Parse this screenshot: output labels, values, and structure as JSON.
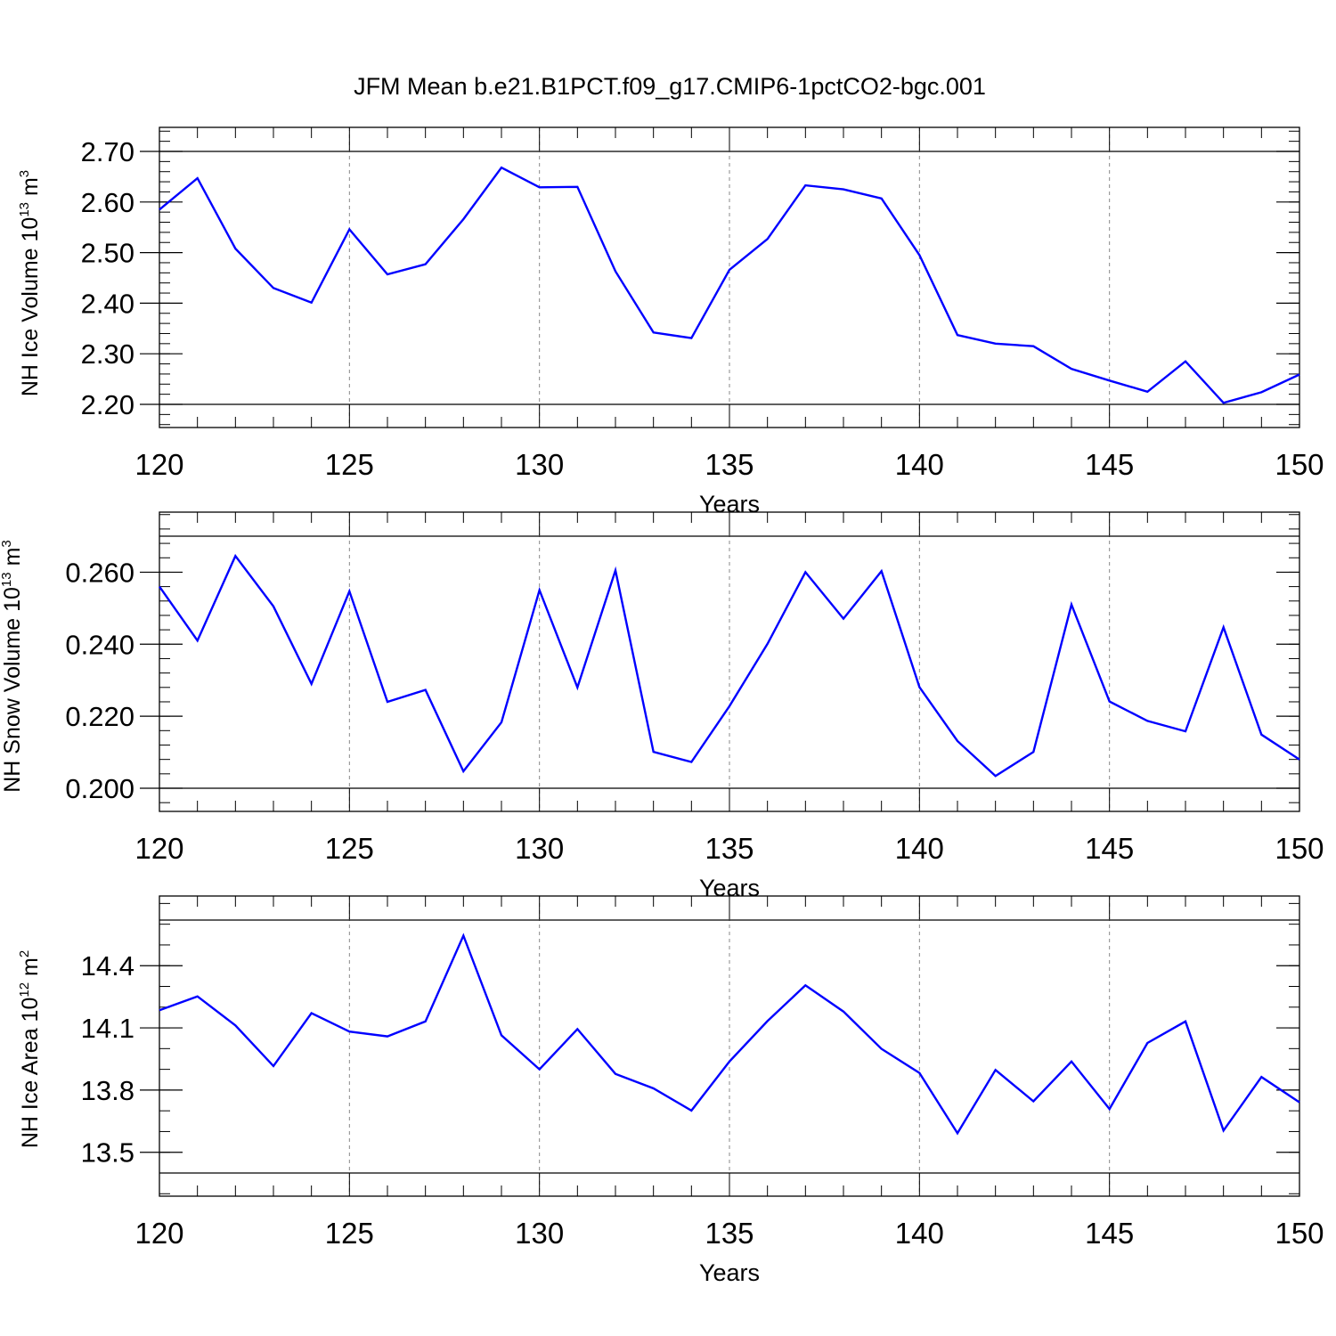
{
  "title": "JFM Mean b.e21.B1PCT.f09_g17.CMIP6-1pctCO2-bgc.001",
  "chart_data": [
    {
      "type": "line",
      "ylabel": "NH Ice Volume 10",
      "ylabel_sup": "13",
      "ylabel_unit": " m",
      "ylabel_unit_sup": "3",
      "xlabel": "Years",
      "xlim": [
        120,
        150
      ],
      "ylim": [
        2.2,
        2.7
      ],
      "yticks": [
        "2.20",
        "2.30",
        "2.40",
        "2.50",
        "2.60",
        "2.70"
      ],
      "xticks": [
        "120",
        "125",
        "130",
        "135",
        "140",
        "145",
        "150"
      ],
      "line_color": "#0000ff",
      "x": [
        120,
        121,
        122,
        123,
        124,
        125,
        126,
        127,
        128,
        129,
        130,
        131,
        132,
        133,
        134,
        135,
        136,
        137,
        138,
        139,
        140,
        141,
        142,
        143,
        144,
        145,
        146,
        147,
        148,
        149,
        150
      ],
      "values": [
        2.585,
        2.647,
        2.508,
        2.43,
        2.401,
        2.546,
        2.457,
        2.477,
        2.566,
        2.668,
        2.629,
        2.63,
        2.463,
        2.342,
        2.331,
        2.466,
        2.527,
        2.633,
        2.625,
        2.607,
        2.495,
        2.337,
        2.32,
        2.315,
        2.27,
        2.247,
        2.225,
        2.285,
        2.203,
        2.224,
        2.259
      ]
    },
    {
      "type": "line",
      "ylabel": "NH Snow Volume 10",
      "ylabel_sup": "13",
      "ylabel_unit": " m",
      "ylabel_unit_sup": "3",
      "xlabel": "Years",
      "xlim": [
        120,
        150
      ],
      "ylim": [
        0.2,
        0.27
      ],
      "yticks": [
        "0.200",
        "0.220",
        "0.240",
        "0.260"
      ],
      "xticks": [
        "120",
        "125",
        "130",
        "135",
        "140",
        "145",
        "150"
      ],
      "line_color": "#0000ff",
      "x": [
        120,
        121,
        122,
        123,
        124,
        125,
        126,
        127,
        128,
        129,
        130,
        131,
        132,
        133,
        134,
        135,
        136,
        137,
        138,
        139,
        140,
        141,
        142,
        143,
        144,
        145,
        146,
        147,
        148,
        149,
        150
      ],
      "values": [
        0.256,
        0.241,
        0.2645,
        0.2505,
        0.229,
        0.2547,
        0.224,
        0.2273,
        0.2047,
        0.2183,
        0.255,
        0.228,
        0.2605,
        0.2101,
        0.2073,
        0.2228,
        0.2401,
        0.26,
        0.2471,
        0.2603,
        0.2281,
        0.2131,
        0.2034,
        0.2101,
        0.251,
        0.2241,
        0.2187,
        0.2158,
        0.2447,
        0.2149,
        0.208
      ]
    },
    {
      "type": "line",
      "ylabel": "NH Ice Area 10",
      "ylabel_sup": "12",
      "ylabel_unit": " m",
      "ylabel_unit_sup": "2",
      "xlabel": "Years",
      "xlim": [
        120,
        150
      ],
      "ylim": [
        13.4,
        14.62
      ],
      "yticks": [
        "13.5",
        "13.8",
        "14.1",
        "14.4"
      ],
      "xticks": [
        "120",
        "125",
        "130",
        "135",
        "140",
        "145",
        "150"
      ],
      "line_color": "#0000ff",
      "x": [
        120,
        121,
        122,
        123,
        124,
        125,
        126,
        127,
        128,
        129,
        130,
        131,
        132,
        133,
        134,
        135,
        136,
        137,
        138,
        139,
        140,
        141,
        142,
        143,
        144,
        145,
        146,
        147,
        148,
        149,
        150
      ],
      "values": [
        14.185,
        14.252,
        14.112,
        13.916,
        14.171,
        14.082,
        14.059,
        14.131,
        14.545,
        14.064,
        13.9,
        14.094,
        13.878,
        13.808,
        13.701,
        13.938,
        14.133,
        14.305,
        14.179,
        13.999,
        13.883,
        13.592,
        13.897,
        13.746,
        13.938,
        13.709,
        14.027,
        14.131,
        13.605,
        13.863,
        13.741
      ]
    }
  ]
}
